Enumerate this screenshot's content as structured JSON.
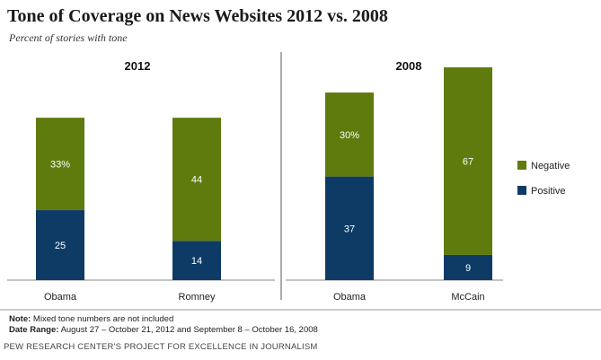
{
  "title": "Tone of Coverage on News Websites 2012 vs. 2008",
  "subtitle": "Percent of stories with tone",
  "chart_data": [
    {
      "type": "bar",
      "stacked": true,
      "panel_label": "2012",
      "categories": [
        "Obama",
        "Romney"
      ],
      "series": [
        {
          "name": "Positive",
          "values": [
            25,
            14
          ],
          "labels": [
            "25",
            "14"
          ]
        },
        {
          "name": "Negative",
          "values": [
            33,
            44
          ],
          "labels": [
            "33%",
            "44"
          ]
        }
      ],
      "ylim": [
        0,
        76
      ]
    },
    {
      "type": "bar",
      "stacked": true,
      "panel_label": "2008",
      "categories": [
        "Obama",
        "McCain"
      ],
      "series": [
        {
          "name": "Positive",
          "values": [
            37,
            9
          ],
          "labels": [
            "37",
            "9"
          ]
        },
        {
          "name": "Negative",
          "values": [
            30,
            67
          ],
          "labels": [
            "30%",
            "67"
          ]
        }
      ],
      "ylim": [
        0,
        76
      ]
    }
  ],
  "legend": {
    "placement": "right",
    "items": [
      {
        "label": "Negative",
        "color": "#5f7b0e"
      },
      {
        "label": "Positive",
        "color": "#0d3b66"
      }
    ]
  },
  "colors": {
    "positive": "#0d3b66",
    "negative": "#5f7b0e"
  },
  "footer": {
    "note_label": "Note:",
    "note_text": "Mixed tone numbers are not included",
    "date_label": "Date Range:",
    "date_text": "August 27 – October 21, 2012 and September 8 – October 16, 2008"
  },
  "source": "PEW RESEARCH CENTER'S PROJECT FOR EXCELLENCE IN JOURNALISM"
}
